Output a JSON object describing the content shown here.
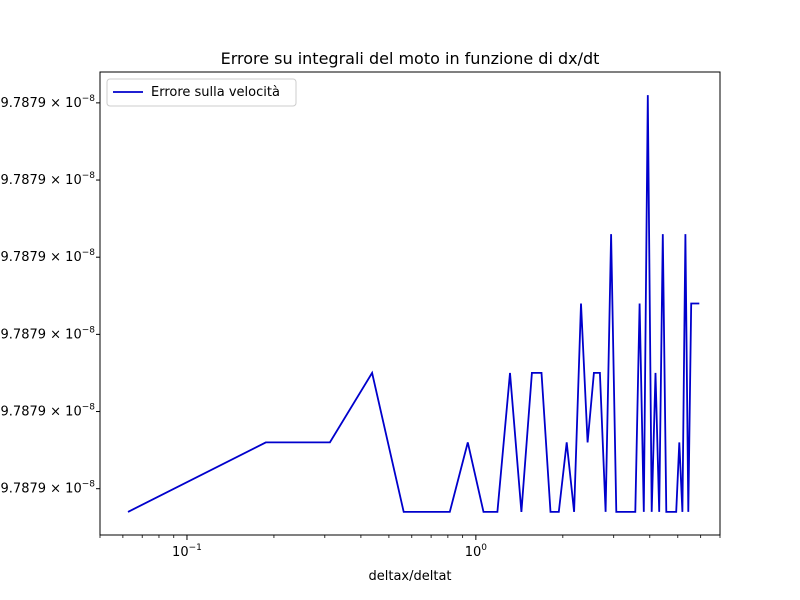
{
  "chart_data": {
    "type": "line",
    "title": "Errore su integrali del moto in funzione di dx/dt",
    "xlabel": "deltax/deltat",
    "ylabel": "",
    "xscale": "log",
    "xlim": [
      0.05,
      7.0
    ],
    "ylim": [
      0.0,
      6.0
    ],
    "x_ticks": [
      {
        "value": 0.1,
        "label": "10",
        "exp": "−1"
      },
      {
        "value": 1.0,
        "label": "10",
        "exp": "0"
      }
    ],
    "y_ticks": [
      {
        "value": 0.6,
        "mantissa": "9.7879",
        "exp": "−8"
      },
      {
        "value": 1.6,
        "mantissa": "9.7879",
        "exp": "−8"
      },
      {
        "value": 2.6,
        "mantissa": "9.7879",
        "exp": "−8"
      },
      {
        "value": 3.6,
        "mantissa": "9.7879",
        "exp": "−8"
      },
      {
        "value": 4.6,
        "mantissa": "9.7879",
        "exp": "−8"
      },
      {
        "value": 5.6,
        "mantissa": "9.7879",
        "exp": "−8"
      }
    ],
    "grid": false,
    "legend_position": "top-left",
    "series": [
      {
        "name": "Errore sulla velocità",
        "color": "#0000cc",
        "x": [
          0.0625,
          0.1875,
          0.3125,
          0.4375,
          0.5625,
          0.6875,
          0.8125,
          0.9375,
          1.0625,
          1.1875,
          1.3125,
          1.4375,
          1.5625,
          1.6875,
          1.8125,
          1.9375,
          2.0625,
          2.1875,
          2.3125,
          2.4375,
          2.5625,
          2.6875,
          2.8125,
          2.9375,
          3.0625,
          3.1875,
          3.3125,
          3.4375,
          3.5625,
          3.6875,
          3.8125,
          3.9375,
          4.0625,
          4.1875,
          4.3125,
          4.4375,
          4.5625,
          4.6875,
          4.8125,
          4.9375,
          5.0625,
          5.1875,
          5.3125,
          5.4375,
          5.5625,
          5.6875,
          5.8125,
          5.9375
        ],
        "y": [
          0.3,
          1.2,
          1.2,
          2.1,
          0.3,
          0.3,
          0.3,
          1.2,
          0.3,
          0.3,
          2.1,
          0.3,
          2.1,
          2.1,
          0.3,
          0.3,
          1.2,
          0.3,
          3.0,
          1.2,
          2.1,
          2.1,
          0.3,
          3.9,
          0.3,
          0.3,
          0.3,
          0.3,
          0.3,
          3.0,
          0.3,
          5.7,
          0.3,
          2.1,
          0.3,
          3.9,
          0.3,
          0.3,
          0.3,
          0.3,
          1.2,
          0.3,
          3.9,
          0.3,
          3.0,
          3.0,
          3.0,
          3.0
        ]
      }
    ]
  }
}
